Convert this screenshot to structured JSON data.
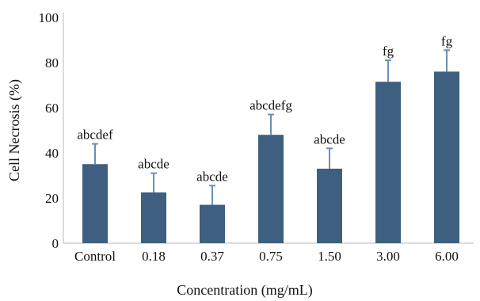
{
  "chart_data": {
    "type": "bar",
    "title": "",
    "xlabel": "Concentration (mg/mL)",
    "ylabel": "Cell Necrosis (%)",
    "ylim": [
      0,
      100
    ],
    "yticks": [
      "0",
      "20",
      "40",
      "60",
      "80",
      "100"
    ],
    "categories": [
      "Control",
      "0.18",
      "0.37",
      "0.75",
      "1.50",
      "3.00",
      "6.00"
    ],
    "values": [
      35,
      22.5,
      17,
      48,
      33,
      71.5,
      76
    ],
    "errors": [
      9,
      8.5,
      8.5,
      9,
      9,
      9.5,
      9.5
    ],
    "significance": [
      "abcdef",
      "abcde",
      "abcde",
      "abcdefg",
      "abcde",
      "fg",
      "fg"
    ],
    "grid": false,
    "legend": "none",
    "colors": {
      "bar": "#3f5f80",
      "error": "#6a8fb6",
      "axis": "#b8b8b8"
    }
  }
}
